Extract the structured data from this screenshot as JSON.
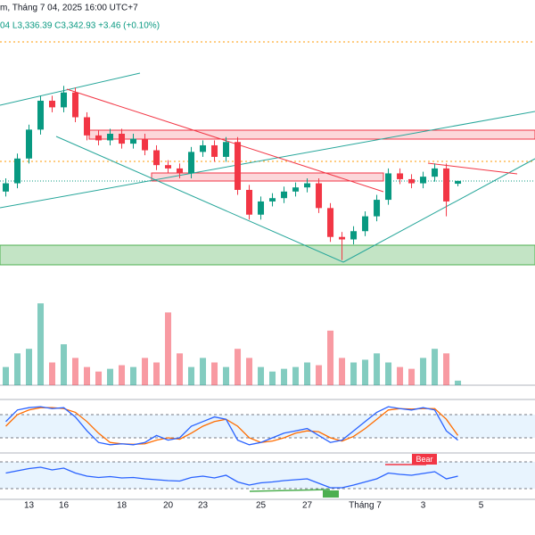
{
  "chart_data": {
    "type": "candlestick",
    "header": {
      "title": "m, Tháng 7 04, 2025 16:00 UTC+7",
      "ohlc": "04  L3,336.39  C3,342.93  +3.46 (+0.10%)"
    },
    "x": [
      0,
      1,
      2,
      3,
      4,
      5,
      6,
      7,
      8,
      9,
      10,
      11,
      12,
      13,
      14,
      15,
      16,
      17,
      18,
      19,
      20,
      21,
      22,
      23,
      24,
      25,
      26,
      27,
      28,
      29,
      30,
      31,
      32,
      33,
      34,
      35,
      36,
      37,
      38,
      39
    ],
    "xlim": [
      -0.5,
      45.65
    ],
    "xticks": [
      {
        "value": 2,
        "label": "13"
      },
      {
        "value": 5,
        "label": "16"
      },
      {
        "value": 10,
        "label": "18"
      },
      {
        "value": 14,
        "label": "20"
      },
      {
        "value": 17,
        "label": "23"
      },
      {
        "value": 22,
        "label": "25"
      },
      {
        "value": 26,
        "label": "27"
      },
      {
        "value": 31,
        "label": "Tháng 7"
      },
      {
        "value": 36,
        "label": "3"
      },
      {
        "value": 41,
        "label": "5"
      }
    ],
    "ylim": [
      3238,
      3562
    ],
    "up_color": "#089981",
    "down_color": "#f23645",
    "open": [
      3330,
      3340,
      3370,
      3405,
      3440,
      3432,
      3450,
      3420,
      3398,
      3392,
      3400,
      3388,
      3394,
      3380,
      3362,
      3358,
      3352,
      3378,
      3386,
      3372,
      3390,
      3332,
      3302,
      3318,
      3322,
      3330,
      3335,
      3340,
      3310,
      3275,
      3272,
      3282,
      3300,
      3320,
      3352,
      3345,
      3340,
      3348,
      3358,
      3339.47
    ],
    "high": [
      3346,
      3376,
      3411,
      3446,
      3446,
      3458,
      3456,
      3426,
      3404,
      3406,
      3406,
      3400,
      3400,
      3386,
      3368,
      3364,
      3384,
      3392,
      3392,
      3396,
      3396,
      3338,
      3324,
      3328,
      3336,
      3341,
      3346,
      3346,
      3316,
      3281,
      3288,
      3306,
      3326,
      3358,
      3358,
      3351,
      3354,
      3364,
      3364,
      3343.04
    ],
    "low": [
      3324,
      3334,
      3364,
      3399,
      3426,
      3426,
      3414,
      3392,
      3386,
      3386,
      3382,
      3382,
      3374,
      3356,
      3352,
      3346,
      3346,
      3372,
      3366,
      3366,
      3326,
      3296,
      3296,
      3312,
      3316,
      3324,
      3329,
      3304,
      3269,
      3247,
      3266,
      3276,
      3294,
      3314,
      3339,
      3334,
      3334,
      3342,
      3300,
      3336.39
    ],
    "close": [
      3340,
      3370,
      3405,
      3440,
      3432,
      3450,
      3420,
      3398,
      3392,
      3400,
      3388,
      3394,
      3380,
      3362,
      3358,
      3352,
      3378,
      3386,
      3372,
      3390,
      3332,
      3302,
      3318,
      3322,
      3330,
      3335,
      3340,
      3310,
      3275,
      3272,
      3282,
      3300,
      3320,
      3352,
      3345,
      3340,
      3348,
      3358,
      3318,
      3342.93
    ],
    "volume": [
      20,
      35,
      40,
      90,
      25,
      45,
      30,
      20,
      15,
      18,
      22,
      20,
      30,
      25,
      80,
      35,
      20,
      30,
      25,
      20,
      40,
      30,
      20,
      15,
      18,
      20,
      25,
      22,
      60,
      30,
      25,
      28,
      35,
      25,
      20,
      18,
      30,
      40,
      35,
      5
    ],
    "volume_lim": [
      0,
      100
    ],
    "stoch_k": [
      60,
      85,
      90,
      92,
      88,
      90,
      70,
      40,
      15,
      10,
      12,
      10,
      15,
      30,
      20,
      25,
      50,
      60,
      70,
      65,
      20,
      10,
      15,
      25,
      35,
      40,
      45,
      30,
      15,
      20,
      40,
      60,
      80,
      92,
      88,
      85,
      90,
      85,
      40,
      20
    ],
    "stoch_d": [
      50,
      75,
      85,
      90,
      90,
      88,
      80,
      60,
      35,
      15,
      12,
      11,
      12,
      20,
      25,
      22,
      35,
      50,
      60,
      65,
      50,
      25,
      15,
      18,
      25,
      35,
      40,
      38,
      25,
      18,
      28,
      45,
      65,
      85,
      88,
      87,
      88,
      88,
      65,
      30
    ],
    "stoch_colors": [
      "#2962ff",
      "#ff6d00"
    ],
    "stoch_lim": [
      0,
      100
    ],
    "rsi": [
      55,
      60,
      65,
      68,
      62,
      66,
      55,
      48,
      45,
      47,
      44,
      45,
      42,
      40,
      38,
      37,
      45,
      48,
      44,
      50,
      35,
      28,
      33,
      35,
      38,
      40,
      42,
      32,
      22,
      22,
      28,
      35,
      42,
      55,
      52,
      50,
      54,
      58,
      42,
      48
    ],
    "rsi_color": "#2962ff",
    "rsi_lim": [
      0,
      100
    ],
    "bear_label": "Bear"
  }
}
